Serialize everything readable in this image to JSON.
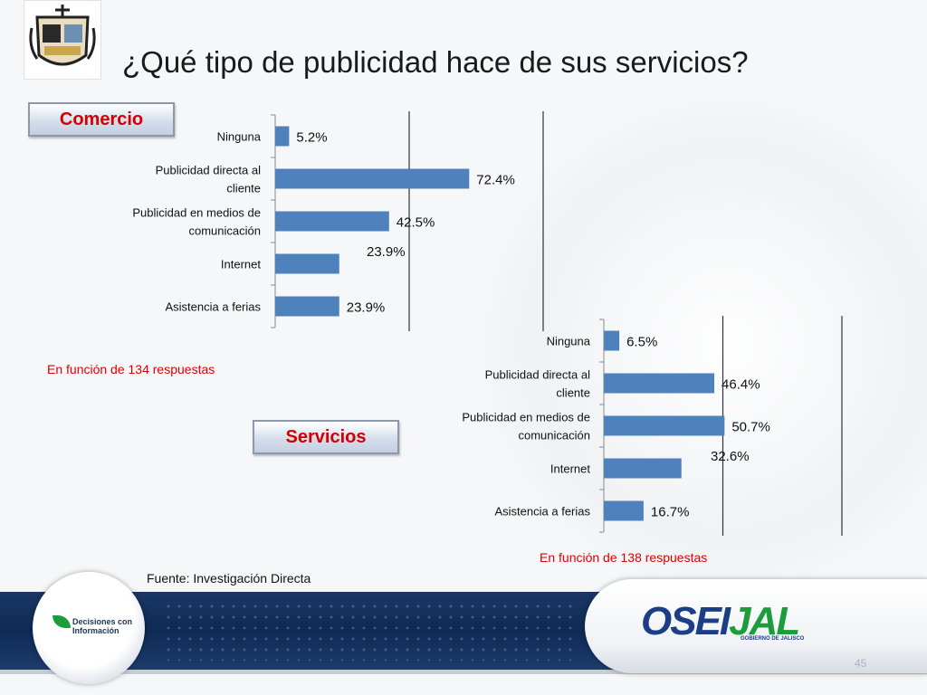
{
  "title": "¿Qué tipo de publicidad hace de sus servicios?",
  "colors": {
    "bar": "#4f81bd",
    "note": "#e00000",
    "label": "#d20000",
    "band": "#12305c"
  },
  "comercio": {
    "label": "Comercio",
    "note": "En función de 134 respuestas"
  },
  "servicios": {
    "label": "Servicios",
    "note": "En función de 138 respuestas"
  },
  "source": "Fuente: Investigación Directa",
  "footer": {
    "left_logo_text": "Decisiones con Información",
    "right_logo_main": "OSEI",
    "right_logo_accent": "JAL",
    "right_logo_sub": "GOBIERNO DE JALISCO",
    "page_number": "45",
    "crest_icon": "crest-icon"
  },
  "chart_data": [
    {
      "type": "bar",
      "orientation": "horizontal",
      "categories": [
        "Ninguna",
        "Publicidad directa al cliente",
        "Publicidad en medios de comunicación",
        "Internet",
        "Asistencia a ferias"
      ],
      "values": [
        5.2,
        72.4,
        42.5,
        23.9,
        23.9
      ],
      "data_labels": [
        "5.2%",
        "72.4%",
        "42.5%",
        "23.9%",
        "23.9%"
      ],
      "xlim": [
        0,
        100
      ],
      "gridlines": [
        50,
        100
      ],
      "legend": "none"
    },
    {
      "type": "bar",
      "orientation": "horizontal",
      "categories": [
        "Ninguna",
        "Publicidad directa al cliente",
        "Publicidad en medios de comunicación",
        "Internet",
        "Asistencia a ferias"
      ],
      "values": [
        6.5,
        46.4,
        50.7,
        32.6,
        16.7
      ],
      "data_labels": [
        "6.5%",
        "46.4%",
        "50.7%",
        "32.6%",
        "16.7%"
      ],
      "xlim": [
        0,
        100
      ],
      "gridlines": [
        50,
        100
      ],
      "legend": "none"
    }
  ]
}
